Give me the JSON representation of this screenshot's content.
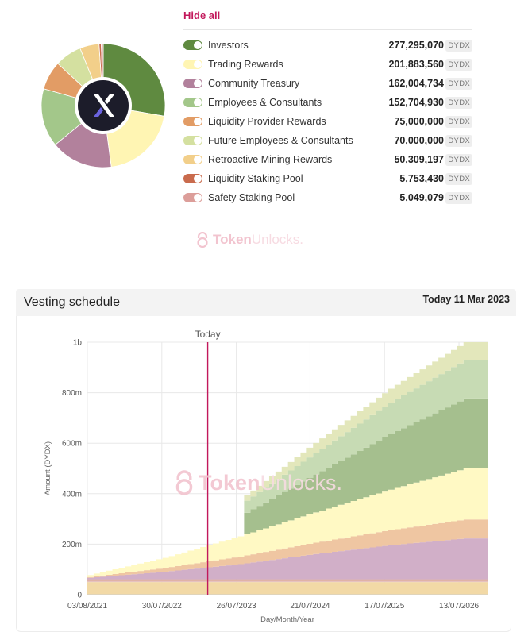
{
  "allocation": {
    "hide_all_label": "Hide all",
    "logo_glyph": "X",
    "items": [
      {
        "name": "Investors",
        "amount": "277,295,070",
        "unit": "DYDX",
        "value": 277295070,
        "color": "#5f8a40"
      },
      {
        "name": "Trading Rewards",
        "amount": "201,883,560",
        "unit": "DYDX",
        "value": 201883560,
        "color": "#fff5b3"
      },
      {
        "name": "Community Treasury",
        "amount": "162,004,734",
        "unit": "DYDX",
        "value": 162004734,
        "color": "#b2819c"
      },
      {
        "name": "Employees & Consultants",
        "amount": "152,704,930",
        "unit": "DYDX",
        "value": 152704930,
        "color": "#a3c78a"
      },
      {
        "name": "Liquidity Provider Rewards",
        "amount": "75,000,000",
        "unit": "DYDX",
        "value": 75000000,
        "color": "#e29c65"
      },
      {
        "name": "Future Employees & Consultants",
        "amount": "70,000,000",
        "unit": "DYDX",
        "value": 70000000,
        "color": "#d4e0a0"
      },
      {
        "name": "Retroactive Mining Rewards",
        "amount": "50,309,197",
        "unit": "DYDX",
        "value": 50309197,
        "color": "#f2cf8a"
      },
      {
        "name": "Liquidity Staking Pool",
        "amount": "5,753,430",
        "unit": "DYDX",
        "value": 5753430,
        "color": "#c96b4d"
      },
      {
        "name": "Safety Staking Pool",
        "amount": "5,049,079",
        "unit": "DYDX",
        "value": 5049079,
        "color": "#dc9e9a"
      }
    ]
  },
  "watermark": {
    "token": "Token",
    "unlocks": "Unlocks."
  },
  "vesting": {
    "title": "Vesting schedule",
    "today_label": "Today 11 Mar 2023"
  },
  "chart_data": {
    "type": "area",
    "stacked": true,
    "xlabel": "Day/Month/Year",
    "ylabel": "Amount (DYDX)",
    "x_ticks": [
      "03/08/2021",
      "30/07/2022",
      "26/07/2023",
      "21/07/2024",
      "17/07/2025",
      "13/07/2026"
    ],
    "x_tick_years": [
      2021.59,
      2022.58,
      2023.57,
      2024.55,
      2025.54,
      2026.53
    ],
    "x_range_years": [
      2021.59,
      2026.92
    ],
    "y_ticks": [
      "0",
      "200m",
      "400m",
      "600m",
      "800m",
      "1b"
    ],
    "y_tick_values": [
      0,
      200,
      400,
      600,
      800,
      1000
    ],
    "ylim": [
      0,
      1000
    ],
    "y_unit": "millions DYDX",
    "today_marker": {
      "label": "Today",
      "year": 2023.19
    },
    "grid": true,
    "series": [
      {
        "name": "Retroactive Mining Rewards",
        "color": "#f2d9a6",
        "points": [
          [
            2021.59,
            50
          ],
          [
            2026.92,
            50
          ]
        ]
      },
      {
        "name": "Safety Staking Pool",
        "color": "#e6c2c0",
        "points": [
          [
            2021.59,
            5
          ],
          [
            2026.92,
            5
          ]
        ]
      },
      {
        "name": "Liquidity Staking Pool",
        "color": "#dba28e",
        "points": [
          [
            2021.59,
            6
          ],
          [
            2026.92,
            6
          ]
        ]
      },
      {
        "name": "Community Treasury",
        "color": "#d1afc8",
        "points": [
          [
            2021.59,
            6
          ],
          [
            2022.59,
            30
          ],
          [
            2023.59,
            60
          ],
          [
            2024.59,
            100
          ],
          [
            2025.59,
            135
          ],
          [
            2026.59,
            162
          ],
          [
            2026.92,
            162
          ]
        ]
      },
      {
        "name": "Liquidity Provider Rewards",
        "color": "#efc6a2",
        "points": [
          [
            2021.59,
            3
          ],
          [
            2022.59,
            15
          ],
          [
            2023.59,
            30
          ],
          [
            2024.59,
            45
          ],
          [
            2025.59,
            60
          ],
          [
            2026.59,
            75
          ],
          [
            2026.92,
            75
          ]
        ]
      },
      {
        "name": "Trading Rewards",
        "color": "#fff9c4",
        "points": [
          [
            2021.59,
            8
          ],
          [
            2022.59,
            40
          ],
          [
            2023.59,
            80
          ],
          [
            2024.59,
            120
          ],
          [
            2025.59,
            160
          ],
          [
            2026.59,
            202
          ],
          [
            2026.92,
            202
          ]
        ]
      },
      {
        "name": "Investors",
        "color": "#a5bf8e",
        "points": [
          [
            2021.59,
            0
          ],
          [
            2023.59,
            0
          ],
          [
            2023.6,
            80
          ],
          [
            2024.59,
            150
          ],
          [
            2025.59,
            220
          ],
          [
            2026.59,
            277
          ],
          [
            2026.92,
            277
          ]
        ]
      },
      {
        "name": "Employees & Consultants",
        "color": "#c7dbb4",
        "points": [
          [
            2021.59,
            0
          ],
          [
            2023.59,
            0
          ],
          [
            2023.6,
            45
          ],
          [
            2024.59,
            85
          ],
          [
            2025.59,
            125
          ],
          [
            2026.59,
            153
          ],
          [
            2026.92,
            153
          ]
        ]
      },
      {
        "name": "Future Employees & Consultants",
        "color": "#e3e7bb",
        "points": [
          [
            2021.59,
            0
          ],
          [
            2023.59,
            0
          ],
          [
            2023.6,
            20
          ],
          [
            2024.59,
            40
          ],
          [
            2025.59,
            55
          ],
          [
            2026.59,
            70
          ],
          [
            2026.92,
            70
          ]
        ]
      }
    ]
  }
}
